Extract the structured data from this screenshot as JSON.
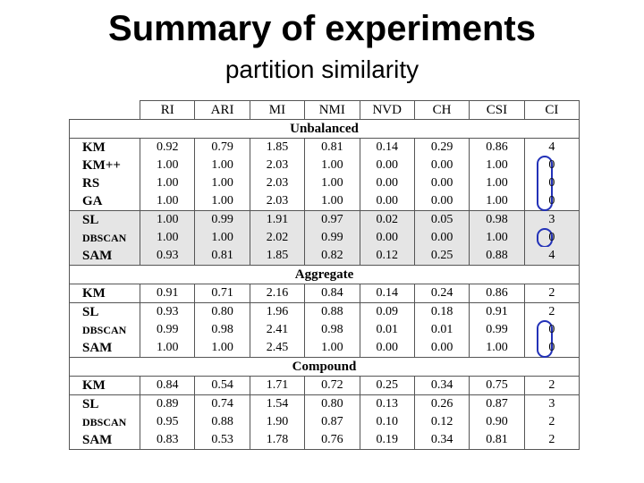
{
  "title": "Summary of experiments",
  "subtitle": "partition similarity",
  "table": {
    "columns": [
      "RI",
      "ARI",
      "MI",
      "NMI",
      "NVD",
      "CH",
      "CSI",
      "CI"
    ],
    "sections": [
      {
        "name": "Unbalanced",
        "rows": [
          {
            "method": "KM",
            "values": [
              "0.92",
              "0.79",
              "1.85",
              "0.81",
              "0.14",
              "0.29",
              "0.86",
              "4"
            ]
          },
          {
            "method": "KM++",
            "values": [
              "1.00",
              "1.00",
              "2.03",
              "1.00",
              "0.00",
              "0.00",
              "1.00",
              "0"
            ]
          },
          {
            "method": "RS",
            "values": [
              "1.00",
              "1.00",
              "2.03",
              "1.00",
              "0.00",
              "0.00",
              "1.00",
              "0"
            ]
          },
          {
            "method": "GA",
            "values": [
              "1.00",
              "1.00",
              "2.03",
              "1.00",
              "0.00",
              "0.00",
              "1.00",
              "0"
            ]
          },
          {
            "method": "SL",
            "values": [
              "1.00",
              "0.99",
              "1.91",
              "0.97",
              "0.02",
              "0.05",
              "0.98",
              "3"
            ]
          },
          {
            "method": "DBSCAN",
            "values": [
              "1.00",
              "1.00",
              "2.02",
              "0.99",
              "0.00",
              "0.00",
              "1.00",
              "0"
            ]
          },
          {
            "method": "SAM",
            "values": [
              "0.93",
              "0.81",
              "1.85",
              "0.82",
              "0.12",
              "0.25",
              "0.88",
              "4"
            ]
          }
        ]
      },
      {
        "name": "Aggregate",
        "rows": [
          {
            "method": "KM",
            "values": [
              "0.91",
              "0.71",
              "2.16",
              "0.84",
              "0.14",
              "0.24",
              "0.86",
              "2"
            ]
          },
          {
            "method": "SL",
            "values": [
              "0.93",
              "0.80",
              "1.96",
              "0.88",
              "0.09",
              "0.18",
              "0.91",
              "2"
            ]
          },
          {
            "method": "DBSCAN",
            "values": [
              "0.99",
              "0.98",
              "2.41",
              "0.98",
              "0.01",
              "0.01",
              "0.99",
              "0"
            ]
          },
          {
            "method": "SAM",
            "values": [
              "1.00",
              "1.00",
              "2.45",
              "1.00",
              "0.00",
              "0.00",
              "1.00",
              "0"
            ]
          }
        ]
      },
      {
        "name": "Compound",
        "rows": [
          {
            "method": "KM",
            "values": [
              "0.84",
              "0.54",
              "1.71",
              "0.72",
              "0.25",
              "0.34",
              "0.75",
              "2"
            ]
          },
          {
            "method": "SL",
            "values": [
              "0.89",
              "0.74",
              "1.54",
              "0.80",
              "0.13",
              "0.26",
              "0.87",
              "3"
            ]
          },
          {
            "method": "DBSCAN",
            "values": [
              "0.95",
              "0.88",
              "1.90",
              "0.87",
              "0.10",
              "0.12",
              "0.90",
              "2"
            ]
          },
          {
            "method": "SAM",
            "values": [
              "0.83",
              "0.53",
              "1.78",
              "0.76",
              "0.19",
              "0.34",
              "0.81",
              "2"
            ]
          }
        ]
      }
    ]
  },
  "highlight_color": "#2332b8",
  "shade_color": "#e5e5e5"
}
